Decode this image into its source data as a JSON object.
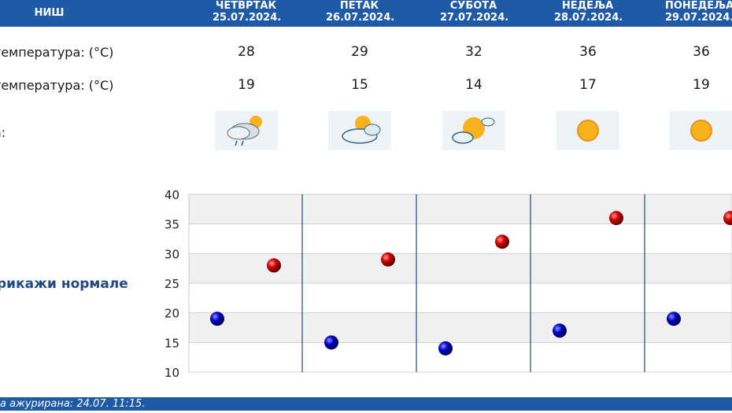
{
  "header": {
    "city": "НИШ",
    "days": [
      {
        "name": "ЧЕТВРТАК",
        "date": "25.07.2024."
      },
      {
        "name": "ПЕТАК",
        "date": "26.07.2024."
      },
      {
        "name": "СУБОТА",
        "date": "27.07.2024."
      },
      {
        "name": "НЕДЕЉА",
        "date": "28.07.2024."
      },
      {
        "name": "ПОНЕДЕЉА",
        "date": "29.07.2024."
      }
    ]
  },
  "rows": {
    "max_label": "температура: (°C)",
    "min_label": "температура: (°C)",
    "icon_label": "а:",
    "max_values": [
      "28",
      "29",
      "32",
      "36",
      "36"
    ],
    "min_values": [
      "19",
      "15",
      "14",
      "17",
      "19"
    ],
    "icons": [
      "cloud-sun-rain-icon",
      "sun-cloud-icon",
      "sun-cloud-icon",
      "sun-icon",
      "sun-icon"
    ]
  },
  "normals_link": "рикажи нормале",
  "footer": "а ажурирана:  24.07.  11:15.",
  "colors": {
    "header_bg": "#1f5aa6",
    "max_marker": "#cc0000",
    "min_marker": "#0000cc",
    "grid_band": "#f0f0f0",
    "day_divider": "#1f4a86"
  },
  "chart_data": {
    "type": "scatter",
    "categories": [
      "25.07.2024.",
      "26.07.2024.",
      "27.07.2024.",
      "28.07.2024.",
      "29.07.2024."
    ],
    "series": [
      {
        "values": [
          19,
          15,
          14,
          17,
          19
        ]
      },
      {
        "values": [
          28,
          29,
          32,
          36,
          36
        ]
      }
    ],
    "yticks": [
      10,
      15,
      20,
      25,
      30,
      35,
      40
    ],
    "ylim": [
      10,
      40
    ],
    "grid": true
  }
}
